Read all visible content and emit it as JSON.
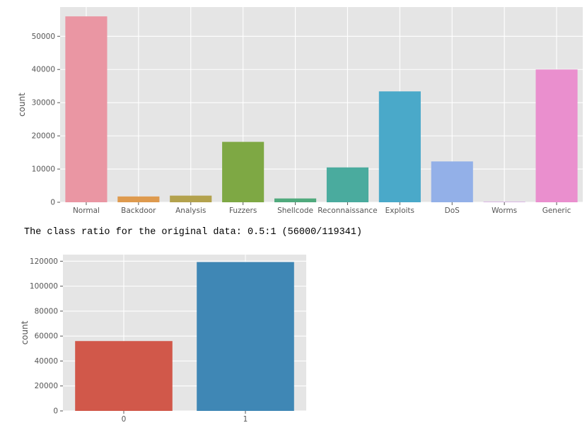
{
  "output_text": "The class ratio for the original data: 0.5:1 (56000/119341)",
  "chart_data": [
    {
      "type": "bar",
      "title": "",
      "xlabel": "",
      "ylabel": "count",
      "ylim": [
        0,
        58800
      ],
      "yticks": [
        0,
        10000,
        20000,
        30000,
        40000,
        50000
      ],
      "grid": true,
      "categories": [
        "Normal",
        "Backdoor",
        "Analysis",
        "Fuzzers",
        "Shellcode",
        "Reconnaissance",
        "Exploits",
        "DoS",
        "Worms",
        "Generic"
      ],
      "values": [
        56000,
        1750,
        2000,
        18200,
        1150,
        10500,
        33400,
        12300,
        130,
        40000
      ],
      "colors": [
        "#ea96a3",
        "#de9a4e",
        "#b3a24d",
        "#7ea844",
        "#50aa7d",
        "#4aab9e",
        "#4aa9c9",
        "#93b0e8",
        "#d39be6",
        "#ea8fce"
      ]
    },
    {
      "type": "bar",
      "title": "",
      "xlabel": "",
      "ylabel": "count",
      "ylim": [
        0,
        125300
      ],
      "yticks": [
        0,
        20000,
        40000,
        60000,
        80000,
        100000,
        120000
      ],
      "grid": true,
      "categories": [
        "0",
        "1"
      ],
      "values": [
        56000,
        119341
      ],
      "colors": [
        "#d1584a",
        "#3f87b5"
      ]
    }
  ]
}
